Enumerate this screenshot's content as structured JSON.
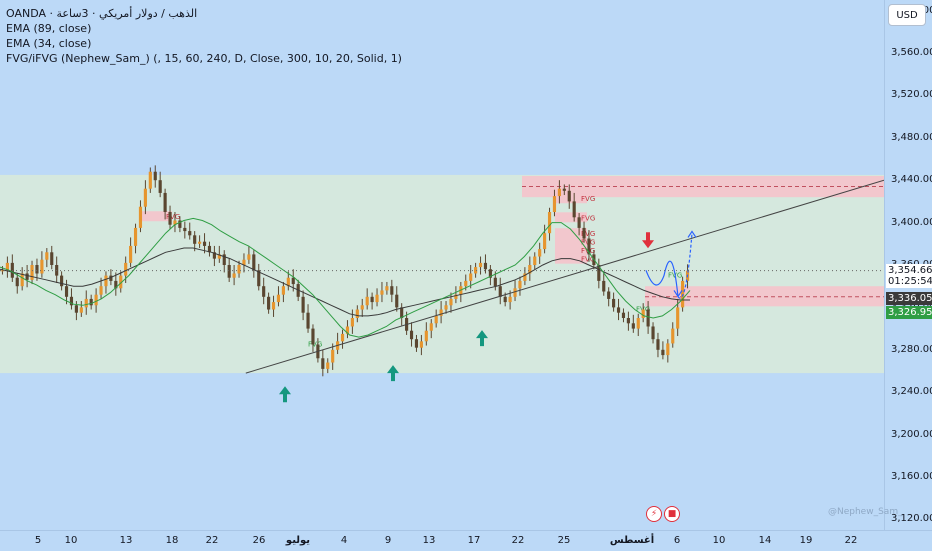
{
  "legend": {
    "title": "OANDA · الذهب / دولار أمريكي · 3ساعة",
    "ema1": "EMA (89, close)",
    "ema2": "EMA (34, close)",
    "fvg": "FVG/iFVG (Nephew_Sam_) (, 15, 60, 240, D, Close, 300, 10, 20, Solid, 1)"
  },
  "currency_button": "USD",
  "price_tags": {
    "last": "3,354.660",
    "countdown": "01:25:54",
    "ema_fast": "3,336.052",
    "ema_slow": "3,326.957"
  },
  "fvg_label": "FVG",
  "watermark": "@Nephew_Sam_",
  "colors": {
    "background": "#bcd9f7",
    "range_zone": "#d9ead9",
    "fvg_zone": "#f2c7cd",
    "candle": "#e6952e",
    "ema_fast": "#2f9e44",
    "ema_slow": "#3a3a3a",
    "arrow_up": "#14977f",
    "arrow_down": "#e0303c",
    "forecast": "#2962ff",
    "last_price_tag": "#ffffff",
    "ema_fast_tag": "#2f9e44",
    "ema_slow_tag": "#3a3a3a"
  },
  "chart_data": {
    "type": "candlestick",
    "y_ticks": [
      "3,120.000",
      "3,160.000",
      "3,200.000",
      "3,240.000",
      "3,280.000",
      "3,320.000",
      "3,360.000",
      "3,400.000",
      "3,440.000",
      "3,480.000",
      "3,520.000",
      "3,560.000",
      "3,600.000"
    ],
    "y_tick_values": [
      3120,
      3160,
      3200,
      3240,
      3280,
      3320,
      3360,
      3400,
      3440,
      3480,
      3520,
      3560,
      3600
    ],
    "x_ticks": [
      "5",
      "10",
      "13",
      "18",
      "22",
      "26",
      "يوليو",
      "4",
      "9",
      "13",
      "17",
      "22",
      "25",
      "أغسطس",
      "6",
      "10",
      "14",
      "19",
      "22"
    ],
    "ylim": [
      3110,
      3610
    ],
    "last_price": 3354.66,
    "ema_fast_last": 3336.052,
    "ema_slow_last": 3326.957,
    "range_zone": [
      3258,
      3445
    ],
    "fvg_zones": [
      [
        3424,
        3444
      ],
      [
        3321,
        3340
      ]
    ],
    "close_series": [
      3355,
      3362,
      3348,
      3340,
      3352,
      3346,
      3360,
      3352,
      3365,
      3372,
      3360,
      3350,
      3340,
      3330,
      3322,
      3315,
      3320,
      3328,
      3322,
      3332,
      3340,
      3350,
      3345,
      3338,
      3350,
      3362,
      3378,
      3395,
      3415,
      3432,
      3448,
      3440,
      3428,
      3410,
      3398,
      3402,
      3395,
      3392,
      3388,
      3380,
      3382,
      3378,
      3372,
      3366,
      3370,
      3360,
      3348,
      3352,
      3360,
      3365,
      3370,
      3355,
      3340,
      3330,
      3318,
      3325,
      3332,
      3340,
      3348,
      3342,
      3330,
      3315,
      3300,
      3285,
      3272,
      3262,
      3268,
      3280,
      3288,
      3295,
      3302,
      3310,
      3318,
      3322,
      3330,
      3325,
      3332,
      3336,
      3340,
      3332,
      3320,
      3310,
      3298,
      3290,
      3282,
      3288,
      3298,
      3305,
      3312,
      3318,
      3322,
      3328,
      3332,
      3340,
      3345,
      3352,
      3358,
      3362,
      3356,
      3348,
      3340,
      3330,
      3325,
      3330,
      3338,
      3345,
      3352,
      3360,
      3368,
      3375,
      3390,
      3410,
      3425,
      3432,
      3430,
      3420,
      3405,
      3395,
      3385,
      3370,
      3360,
      3345,
      3335,
      3328,
      3320,
      3315,
      3310,
      3305,
      3300,
      3310,
      3318,
      3302,
      3290,
      3280,
      3275,
      3286,
      3300,
      3320,
      3345,
      3354.66
    ],
    "ema_fast_series": [
      3358,
      3355,
      3350,
      3345,
      3341,
      3336,
      3332,
      3327,
      3323,
      3322,
      3324,
      3328,
      3334,
      3342,
      3350,
      3360,
      3370,
      3380,
      3390,
      3398,
      3402,
      3404,
      3402,
      3398,
      3392,
      3387,
      3382,
      3378,
      3372,
      3366,
      3360,
      3354,
      3348,
      3340,
      3332,
      3322,
      3312,
      3302,
      3294,
      3292,
      3294,
      3298,
      3302,
      3308,
      3312,
      3316,
      3320,
      3324,
      3328,
      3332,
      3336,
      3340,
      3344,
      3348,
      3352,
      3356,
      3360,
      3368,
      3378,
      3390,
      3400,
      3400,
      3394,
      3384,
      3372,
      3360,
      3348,
      3336,
      3326,
      3318,
      3312,
      3310,
      3312,
      3318,
      3326,
      3336.052
    ],
    "ema_slow_series": [
      3356,
      3354,
      3352,
      3350,
      3348,
      3346,
      3344,
      3342,
      3340,
      3340,
      3342,
      3345,
      3348,
      3352,
      3356,
      3360,
      3364,
      3368,
      3372,
      3374,
      3376,
      3376,
      3374,
      3372,
      3369,
      3366,
      3362,
      3358,
      3354,
      3350,
      3346,
      3342,
      3338,
      3334,
      3330,
      3326,
      3322,
      3318,
      3314,
      3312,
      3312,
      3313,
      3315,
      3318,
      3320,
      3322,
      3324,
      3326,
      3328,
      3330,
      3332,
      3334,
      3336,
      3338,
      3340,
      3343,
      3346,
      3350,
      3355,
      3360,
      3364,
      3366,
      3366,
      3364,
      3360,
      3356,
      3352,
      3348,
      3344,
      3340,
      3336,
      3333,
      3330,
      3328,
      3327,
      3326.957
    ],
    "trendline": [
      [
        0.12,
        3258
      ],
      [
        1.0,
        3440
      ]
    ],
    "support_arrows_x_frac": [
      0.32,
      0.445,
      0.545
    ],
    "resistance_arrow_x_frac": 0.735
  }
}
